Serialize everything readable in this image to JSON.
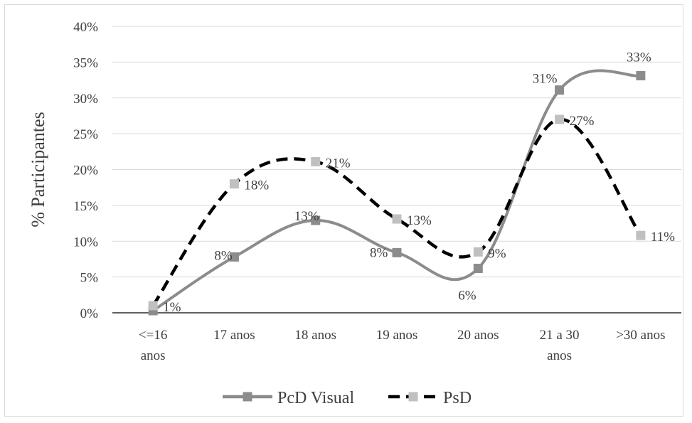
{
  "chart_data": {
    "type": "line",
    "title": "",
    "xlabel": "",
    "ylabel": "% Participantes",
    "ylim": [
      0,
      40
    ],
    "y_ticks": [
      "0%",
      "5%",
      "10%",
      "15%",
      "20%",
      "25%",
      "30%",
      "35%",
      "40%"
    ],
    "categories": [
      [
        "<=16",
        "anos"
      ],
      [
        "17 anos"
      ],
      [
        "18 anos"
      ],
      [
        "19 anos"
      ],
      [
        "20 anos"
      ],
      [
        "21 a 30",
        "anos"
      ],
      [
        ">30 anos"
      ]
    ],
    "grid": true,
    "legend_position": "bottom",
    "series": [
      {
        "name": "PcD Visual",
        "color": "#8c8c8c",
        "marker_color": "#8c8c8c",
        "line_style": "solid",
        "values": [
          0.3,
          7.8,
          12.9,
          8.4,
          6.2,
          31.1,
          33.1
        ],
        "labels": [
          "",
          "8%",
          "13%",
          "8%",
          "6%",
          "31%",
          "33%"
        ]
      },
      {
        "name": "PsD",
        "color": "#000000",
        "marker_color": "#c0c0c0",
        "line_style": "dashed",
        "values": [
          1.0,
          18.0,
          21.1,
          13.1,
          8.5,
          27.0,
          10.8
        ],
        "labels": [
          "1%",
          "18%",
          "21%",
          "13%",
          "9%",
          "27%",
          "11%"
        ]
      }
    ]
  }
}
